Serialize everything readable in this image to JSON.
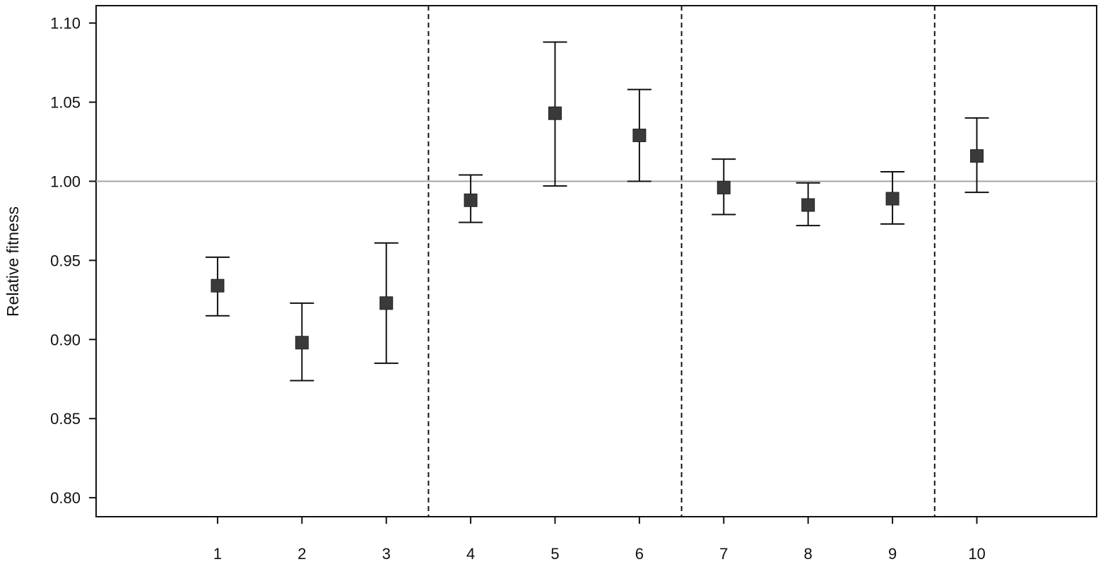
{
  "chart_data": {
    "type": "scatter",
    "title": "",
    "xlabel": "",
    "ylabel": "Relative fitness",
    "x": [
      1,
      2,
      3,
      4,
      5,
      6,
      7,
      8,
      9,
      10
    ],
    "x_tick_labels": [
      "1",
      "2",
      "3",
      "4",
      "5",
      "6",
      "7",
      "8",
      "9",
      "10"
    ],
    "xlim": [
      -0.44,
      11.42
    ],
    "ylim": [
      0.788,
      1.111
    ],
    "y_ticks": [
      0.8,
      0.85,
      0.9,
      0.95,
      1.0,
      1.05,
      1.1
    ],
    "y_tick_labels": [
      "0.80",
      "0.85",
      "0.90",
      "0.95",
      "1.00",
      "1.05",
      "1.10"
    ],
    "reference_line_y": 1.0,
    "group_separators_x": [
      3.5,
      6.5,
      9.5
    ],
    "grid": false,
    "legend": "none",
    "series": [
      {
        "values": [
          0.934,
          0.898,
          0.923,
          0.988,
          1.043,
          1.029,
          0.996,
          0.985,
          0.989,
          1.016
        ],
        "error_low": [
          0.915,
          0.874,
          0.885,
          0.974,
          0.997,
          1.0,
          0.979,
          0.972,
          0.973,
          0.993
        ],
        "error_high": [
          0.952,
          0.923,
          0.961,
          1.004,
          1.088,
          1.058,
          1.014,
          0.999,
          1.006,
          1.04
        ]
      }
    ],
    "colors": {
      "marker": "#3a3a3a",
      "error_bar": "#111111",
      "reference_line": "#a6a6a6",
      "separator": "#111111",
      "axis": "#111111"
    }
  }
}
